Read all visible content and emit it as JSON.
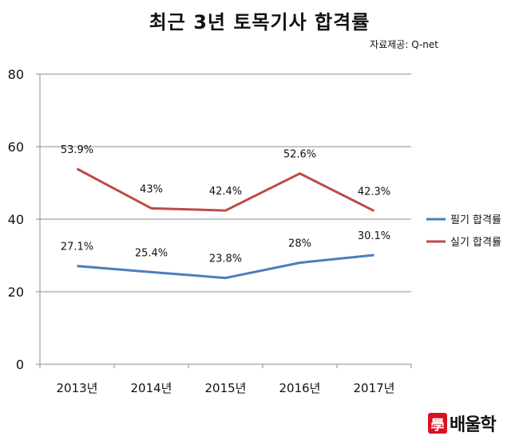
{
  "chart_data": {
    "type": "line",
    "title": "최근 3년 토목기사 합격률",
    "subtitle": "자료제공: Q-net",
    "categories": [
      "2013년",
      "2014년",
      "2015년",
      "2016년",
      "2017년"
    ],
    "series": [
      {
        "name": "필기 합격률",
        "values": [
          27.1,
          25.4,
          23.8,
          28,
          30.1
        ],
        "labels": [
          "27.1%",
          "25.4%",
          "23.8%",
          "28%",
          "30.1%"
        ],
        "color": "#4a7ebb"
      },
      {
        "name": "실기 합격률",
        "values": [
          53.9,
          43,
          42.4,
          52.6,
          42.3
        ],
        "labels": [
          "53.9%",
          "43%",
          "42.4%",
          "52.6%",
          "42.3%"
        ],
        "color": "#be4b48"
      }
    ],
    "ylim": [
      0,
      80
    ],
    "yticks": [
      0,
      20,
      40,
      60,
      80
    ],
    "ytick_labels": [
      "0",
      "20",
      "40",
      "60",
      "80"
    ],
    "grid": true,
    "legend_position": "right"
  },
  "branding": {
    "logo_mark": "學",
    "logo_text": "배울학"
  }
}
